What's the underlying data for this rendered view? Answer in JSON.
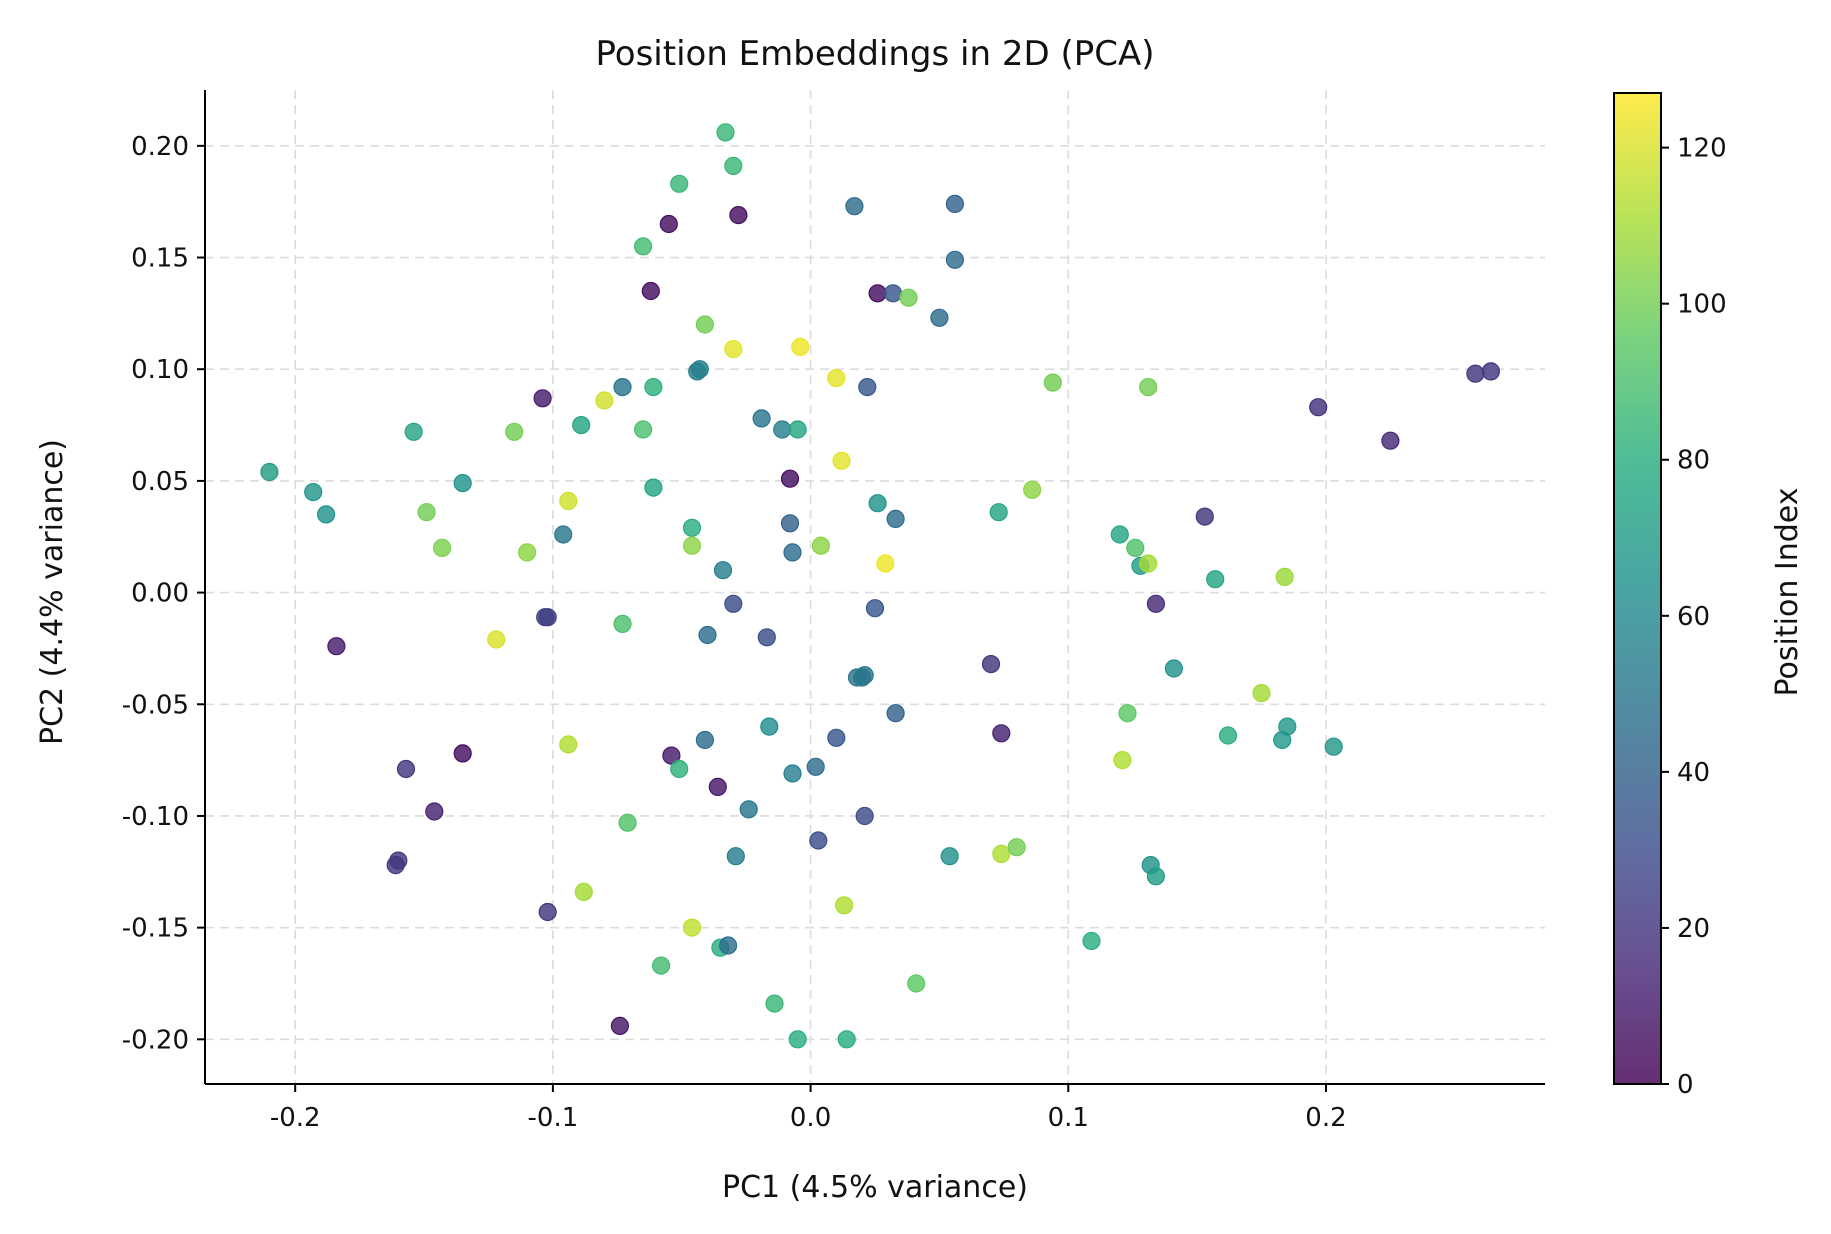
{
  "chart_data": {
    "type": "scatter",
    "title": "Position Embeddings in 2D (PCA)",
    "xlabel": "PC1 (4.5% variance)",
    "ylabel": "PC2 (4.4% variance)",
    "xlim": [
      -0.235,
      0.285
    ],
    "ylim": [
      -0.22,
      0.225
    ],
    "xticks": [
      -0.2,
      -0.1,
      0.0,
      0.1,
      0.2
    ],
    "xtick_labels": [
      "-0.2",
      "-0.1",
      "0.0",
      "0.1",
      "0.2"
    ],
    "yticks": [
      -0.2,
      -0.15,
      -0.1,
      -0.05,
      0.0,
      0.05,
      0.1,
      0.15,
      0.2
    ],
    "ytick_labels": [
      "-0.20",
      "-0.15",
      "-0.10",
      "-0.05",
      "0.00",
      "0.05",
      "0.10",
      "0.15",
      "0.20"
    ],
    "grid": true,
    "colormap": "viridis",
    "colorbar": {
      "label": "Position Index",
      "range": [
        0,
        127
      ],
      "ticks": [
        0,
        20,
        40,
        60,
        80,
        100,
        120
      ],
      "tick_labels": [
        "0",
        "20",
        "40",
        "60",
        "80",
        "100",
        "120"
      ]
    },
    "points": [
      [
        -0.21,
        0.054,
        70
      ],
      [
        -0.193,
        0.045,
        67
      ],
      [
        -0.188,
        0.035,
        65
      ],
      [
        -0.184,
        -0.024,
        10
      ],
      [
        -0.154,
        0.072,
        75
      ],
      [
        -0.149,
        0.036,
        100
      ],
      [
        -0.143,
        0.02,
        102
      ],
      [
        -0.135,
        0.049,
        65
      ],
      [
        -0.135,
        -0.072,
        5
      ],
      [
        -0.16,
        -0.12,
        20
      ],
      [
        -0.161,
        -0.122,
        20
      ],
      [
        -0.157,
        -0.079,
        20
      ],
      [
        -0.146,
        -0.098,
        12
      ],
      [
        -0.115,
        0.072,
        100
      ],
      [
        -0.11,
        0.018,
        105
      ],
      [
        -0.104,
        0.087,
        10
      ],
      [
        -0.102,
        -0.011,
        25
      ],
      [
        -0.103,
        -0.011,
        25
      ],
      [
        -0.102,
        -0.143,
        20
      ],
      [
        -0.096,
        0.026,
        50
      ],
      [
        -0.094,
        0.041,
        118
      ],
      [
        -0.094,
        -0.068,
        112
      ],
      [
        -0.089,
        0.075,
        75
      ],
      [
        -0.088,
        -0.134,
        110
      ],
      [
        -0.122,
        -0.021,
        120
      ],
      [
        -0.08,
        0.086,
        118
      ],
      [
        -0.073,
        0.092,
        50
      ],
      [
        -0.073,
        -0.014,
        90
      ],
      [
        -0.074,
        -0.194,
        8
      ],
      [
        -0.071,
        -0.103,
        92
      ],
      [
        -0.065,
        0.155,
        88
      ],
      [
        -0.065,
        0.073,
        90
      ],
      [
        -0.062,
        0.135,
        5
      ],
      [
        -0.061,
        0.092,
        82
      ],
      [
        -0.061,
        0.047,
        75
      ],
      [
        -0.058,
        -0.167,
        88
      ],
      [
        -0.055,
        0.165,
        5
      ],
      [
        -0.054,
        -0.073,
        10
      ],
      [
        -0.051,
        0.183,
        85
      ],
      [
        -0.051,
        -0.079,
        82
      ],
      [
        -0.046,
        0.029,
        80
      ],
      [
        -0.046,
        0.021,
        105
      ],
      [
        -0.046,
        -0.15,
        115
      ],
      [
        -0.043,
        0.1,
        55
      ],
      [
        -0.044,
        0.099,
        55
      ],
      [
        -0.041,
        0.12,
        100
      ],
      [
        -0.041,
        -0.066,
        45
      ],
      [
        -0.04,
        -0.019,
        45
      ],
      [
        -0.036,
        -0.087,
        8
      ],
      [
        -0.035,
        -0.159,
        80
      ],
      [
        -0.034,
        0.01,
        55
      ],
      [
        -0.033,
        0.206,
        85
      ],
      [
        -0.032,
        -0.158,
        45
      ],
      [
        -0.03,
        0.191,
        85
      ],
      [
        -0.03,
        0.109,
        122
      ],
      [
        -0.03,
        -0.005,
        30
      ],
      [
        -0.029,
        -0.118,
        55
      ],
      [
        -0.028,
        0.169,
        5
      ],
      [
        -0.024,
        -0.097,
        50
      ],
      [
        -0.019,
        0.078,
        50
      ],
      [
        -0.017,
        -0.02,
        30
      ],
      [
        -0.016,
        -0.06,
        62
      ],
      [
        -0.014,
        -0.184,
        85
      ],
      [
        -0.011,
        0.073,
        55
      ],
      [
        -0.008,
        0.051,
        5
      ],
      [
        -0.008,
        0.031,
        40
      ],
      [
        -0.007,
        -0.081,
        55
      ],
      [
        -0.007,
        0.018,
        45
      ],
      [
        -0.005,
        0.073,
        75
      ],
      [
        -0.005,
        -0.2,
        80
      ],
      [
        -0.004,
        0.11,
        124
      ],
      [
        0.002,
        -0.078,
        45
      ],
      [
        0.003,
        -0.111,
        30
      ],
      [
        0.004,
        0.021,
        105
      ],
      [
        0.01,
        0.096,
        122
      ],
      [
        0.01,
        -0.065,
        35
      ],
      [
        0.012,
        0.059,
        122
      ],
      [
        0.013,
        -0.14,
        112
      ],
      [
        0.014,
        -0.2,
        80
      ],
      [
        0.017,
        0.173,
        45
      ],
      [
        0.018,
        -0.038,
        50
      ],
      [
        0.02,
        -0.038,
        50
      ],
      [
        0.021,
        -0.037,
        50
      ],
      [
        0.021,
        -0.1,
        30
      ],
      [
        0.022,
        0.092,
        35
      ],
      [
        0.025,
        -0.007,
        35
      ],
      [
        0.026,
        0.134,
        5
      ],
      [
        0.026,
        0.04,
        65
      ],
      [
        0.029,
        0.013,
        124
      ],
      [
        0.032,
        0.134,
        35
      ],
      [
        0.033,
        0.033,
        45
      ],
      [
        0.033,
        -0.054,
        40
      ],
      [
        0.038,
        0.132,
        100
      ],
      [
        0.041,
        -0.175,
        95
      ],
      [
        0.05,
        0.123,
        45
      ],
      [
        0.054,
        -0.118,
        65
      ],
      [
        0.056,
        0.174,
        40
      ],
      [
        0.056,
        0.149,
        45
      ],
      [
        0.07,
        -0.032,
        20
      ],
      [
        0.073,
        0.036,
        75
      ],
      [
        0.074,
        -0.063,
        12
      ],
      [
        0.074,
        -0.117,
        112
      ],
      [
        0.08,
        -0.114,
        100
      ],
      [
        0.086,
        0.046,
        105
      ],
      [
        0.094,
        0.094,
        100
      ],
      [
        0.109,
        -0.156,
        80
      ],
      [
        0.12,
        0.026,
        75
      ],
      [
        0.121,
        -0.075,
        112
      ],
      [
        0.123,
        -0.054,
        95
      ],
      [
        0.126,
        0.02,
        92
      ],
      [
        0.128,
        0.012,
        70
      ],
      [
        0.131,
        0.092,
        100
      ],
      [
        0.131,
        0.013,
        110
      ],
      [
        0.132,
        -0.122,
        65
      ],
      [
        0.134,
        -0.005,
        15
      ],
      [
        0.134,
        -0.127,
        70
      ],
      [
        0.141,
        -0.034,
        65
      ],
      [
        0.153,
        0.034,
        20
      ],
      [
        0.157,
        0.006,
        75
      ],
      [
        0.162,
        -0.064,
        80
      ],
      [
        0.175,
        -0.045,
        110
      ],
      [
        0.183,
        -0.066,
        68
      ],
      [
        0.184,
        0.007,
        108
      ],
      [
        0.185,
        -0.06,
        68
      ],
      [
        0.197,
        0.083,
        18
      ],
      [
        0.203,
        -0.069,
        68
      ],
      [
        0.225,
        0.068,
        15
      ],
      [
        0.258,
        0.098,
        20
      ],
      [
        0.264,
        0.099,
        20
      ]
    ]
  }
}
